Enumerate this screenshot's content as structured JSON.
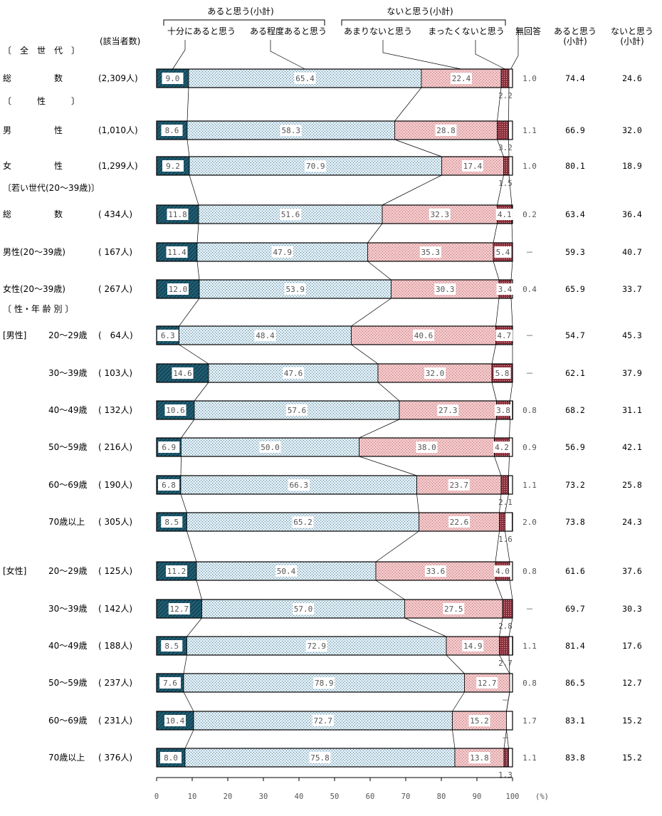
{
  "chart_data": {
    "type": "stacked-bar",
    "unit_label": "(%)",
    "count_header": "(該当者数)",
    "xlim": [
      0,
      100
    ],
    "x_ticks": [
      "0",
      "10",
      "20",
      "30",
      "40",
      "50",
      "60",
      "70",
      "80",
      "90",
      "100"
    ],
    "legend": {
      "group_yes": "あると思う(小計)",
      "group_no": "ないと思う(小計)",
      "items": [
        "十分にあると思う",
        "ある程度あると思う",
        "あまりないと思う",
        "まったくないと思う",
        "無回答"
      ],
      "total_yes": [
        "あると思う",
        "(小計)"
      ],
      "total_no": [
        "ないと思う",
        "(小計)"
      ]
    },
    "series_colors": {
      "fully": "#1f5d73",
      "somewhat": "#dcecf4",
      "not_much": "#f4c6c8",
      "not_at_all": "#8e2f3c",
      "no_answer": "#ffffff"
    },
    "sections": [
      {
        "id": "s0",
        "label": "〔　全　世　代　〕"
      },
      {
        "id": "s1",
        "label": "〔　　　性　　　〕"
      },
      {
        "id": "s2",
        "label": "〔若い世代(20～39歳)〕"
      },
      {
        "id": "s3",
        "label": "〔 性・年 齢 別 〕"
      }
    ],
    "rows": [
      {
        "group": "",
        "label": "総　　　　　数",
        "n": "(2,309人)",
        "values": [
          9.0,
          65.4,
          22.4,
          2.2,
          1.0
        ],
        "labels": [
          "9.0",
          "65.4",
          "22.4",
          "2.2",
          "1.0"
        ],
        "yes": "74.4",
        "no": "24.6"
      },
      {
        "group": "",
        "label": "男　　　　　性",
        "n": "(1,010人)",
        "values": [
          8.6,
          58.3,
          28.8,
          3.2,
          1.1
        ],
        "labels": [
          "8.6",
          "58.3",
          "28.8",
          "3.2",
          "1.1"
        ],
        "yes": "66.9",
        "no": "32.0"
      },
      {
        "group": "",
        "label": "女　　　　　性",
        "n": "(1,299人)",
        "values": [
          9.2,
          70.9,
          17.4,
          1.5,
          1.0
        ],
        "labels": [
          "9.2",
          "70.9",
          "17.4",
          "1.5",
          "1.0"
        ],
        "yes": "80.1",
        "no": "18.9"
      },
      {
        "group": "",
        "label": "総　　　　　数",
        "n": "( 434人)",
        "values": [
          11.8,
          51.6,
          32.3,
          4.1,
          0.2
        ],
        "labels": [
          "11.8",
          "51.6",
          "32.3",
          "4.1",
          "0.2"
        ],
        "yes": "63.4",
        "no": "36.4"
      },
      {
        "group": "",
        "label": "男性(20～39歳)",
        "n": "( 167人)",
        "values": [
          11.4,
          47.9,
          35.3,
          5.4,
          0
        ],
        "labels": [
          "11.4",
          "47.9",
          "35.3",
          "5.4",
          "－"
        ],
        "yes": "59.3",
        "no": "40.7"
      },
      {
        "group": "",
        "label": "女性(20～39歳)",
        "n": "( 267人)",
        "values": [
          12.0,
          53.9,
          30.3,
          3.4,
          0.4
        ],
        "labels": [
          "12.0",
          "53.9",
          "30.3",
          "3.4",
          "0.4"
        ],
        "yes": "65.9",
        "no": "33.7"
      },
      {
        "group": "[男性]",
        "label": "20～29歳",
        "n": "(　64人)",
        "values": [
          6.3,
          48.4,
          40.6,
          4.7,
          0
        ],
        "labels": [
          "6.3",
          "48.4",
          "40.6",
          "4.7",
          "－"
        ],
        "yes": "54.7",
        "no": "45.3"
      },
      {
        "group": "",
        "label": "30～39歳",
        "n": "( 103人)",
        "values": [
          14.6,
          47.6,
          32.0,
          5.8,
          0
        ],
        "labels": [
          "14.6",
          "47.6",
          "32.0",
          "5.8",
          "－"
        ],
        "yes": "62.1",
        "no": "37.9"
      },
      {
        "group": "",
        "label": "40～49歳",
        "n": "( 132人)",
        "values": [
          10.6,
          57.6,
          27.3,
          3.8,
          0.8
        ],
        "labels": [
          "10.6",
          "57.6",
          "27.3",
          "3.8",
          "0.8"
        ],
        "yes": "68.2",
        "no": "31.1"
      },
      {
        "group": "",
        "label": "50～59歳",
        "n": "( 216人)",
        "values": [
          6.9,
          50.0,
          38.0,
          4.2,
          0.9
        ],
        "labels": [
          "6.9",
          "50.0",
          "38.0",
          "4.2",
          "0.9"
        ],
        "yes": "56.9",
        "no": "42.1"
      },
      {
        "group": "",
        "label": "60～69歳",
        "n": "( 190人)",
        "values": [
          6.8,
          66.3,
          23.7,
          2.1,
          1.1
        ],
        "labels": [
          "6.8",
          "66.3",
          "23.7",
          "2.1",
          "1.1"
        ],
        "yes": "73.2",
        "no": "25.8"
      },
      {
        "group": "",
        "label": "70歳以上",
        "n": "( 305人)",
        "values": [
          8.5,
          65.2,
          22.6,
          1.6,
          2.0
        ],
        "labels": [
          "8.5",
          "65.2",
          "22.6",
          "1.6",
          "2.0"
        ],
        "yes": "73.8",
        "no": "24.3"
      },
      {
        "group": "[女性]",
        "label": "20～29歳",
        "n": "( 125人)",
        "values": [
          11.2,
          50.4,
          33.6,
          4.0,
          0.8
        ],
        "labels": [
          "11.2",
          "50.4",
          "33.6",
          "4.0",
          "0.8"
        ],
        "yes": "61.6",
        "no": "37.6"
      },
      {
        "group": "",
        "label": "30～39歳",
        "n": "( 142人)",
        "values": [
          12.7,
          57.0,
          27.5,
          2.8,
          0
        ],
        "labels": [
          "12.7",
          "57.0",
          "27.5",
          "2.8",
          "－"
        ],
        "yes": "69.7",
        "no": "30.3"
      },
      {
        "group": "",
        "label": "40～49歳",
        "n": "( 188人)",
        "values": [
          8.5,
          72.9,
          14.9,
          2.7,
          1.1
        ],
        "labels": [
          "8.5",
          "72.9",
          "14.9",
          "2.7",
          "1.1"
        ],
        "yes": "81.4",
        "no": "17.6"
      },
      {
        "group": "",
        "label": "50～59歳",
        "n": "( 237人)",
        "values": [
          7.6,
          78.9,
          12.7,
          0,
          0.8
        ],
        "labels": [
          "7.6",
          "78.9",
          "12.7",
          "－",
          "0.8"
        ],
        "yes": "86.5",
        "no": "12.7"
      },
      {
        "group": "",
        "label": "60～69歳",
        "n": "( 231人)",
        "values": [
          10.4,
          72.7,
          15.2,
          0,
          1.7
        ],
        "labels": [
          "10.4",
          "72.7",
          "15.2",
          "－",
          "1.7"
        ],
        "yes": "83.1",
        "no": "15.2"
      },
      {
        "group": "",
        "label": "70歳以上",
        "n": "( 376人)",
        "values": [
          8.0,
          75.8,
          13.8,
          1.3,
          1.1
        ],
        "labels": [
          "8.0",
          "75.8",
          "13.8",
          "1.3",
          "1.1"
        ],
        "yes": "83.8",
        "no": "15.2"
      }
    ]
  }
}
